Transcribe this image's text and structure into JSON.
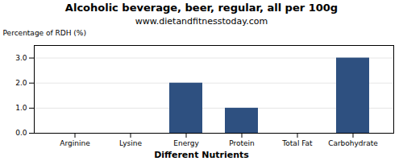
{
  "chart_data": {
    "type": "bar",
    "title": "Alcoholic beverage, beer, regular, all per 100g",
    "subtitle": "www.dietandfitnesstoday.com",
    "xlabel": "Different Nutrients",
    "ylabel": "Percentage of RDH (%)",
    "categories": [
      "Arginine",
      "Lysine",
      "Energy",
      "Protein",
      "Total Fat",
      "Carbohydrate"
    ],
    "values": [
      0,
      0,
      2.0,
      1.0,
      0,
      3.0
    ],
    "color": "#2e5080",
    "ylim": [
      0,
      3.5
    ],
    "yticks": [
      {
        "value": 0.0,
        "label": "0.0"
      },
      {
        "value": 1.0,
        "label": "1.0"
      },
      {
        "value": 2.0,
        "label": "2.0"
      },
      {
        "value": 3.0,
        "label": "3.0"
      }
    ],
    "grid": true
  }
}
